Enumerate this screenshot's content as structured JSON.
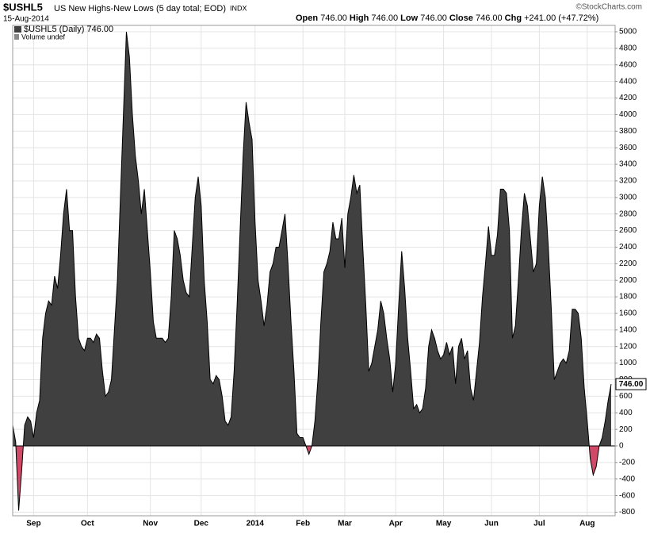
{
  "header": {
    "symbol": "$USHL5",
    "description": "US New Highs-New Lows (5 day total; EOD)",
    "exchange": "INDX",
    "date": "15-Aug-2014",
    "credit": "©StockCharts.com",
    "quote": [
      {
        "label": "Open",
        "value": "746.00"
      },
      {
        "label": "High",
        "value": "746.00"
      },
      {
        "label": "Low",
        "value": "746.00"
      },
      {
        "label": "Close",
        "value": "746.00"
      },
      {
        "label": "Chg",
        "value": "+241.00 (+47.72%)"
      }
    ]
  },
  "chart_data": {
    "type": "area",
    "volume_note": "Volume undef",
    "grid": true,
    "ylim": [
      -843,
      5077
    ],
    "yticks": [
      -800,
      -600,
      -400,
      -200,
      0,
      200,
      400,
      600,
      800,
      1000,
      1200,
      1400,
      1600,
      1800,
      2000,
      2200,
      2400,
      2600,
      2800,
      3000,
      3200,
      3400,
      3600,
      3800,
      4000,
      4200,
      4400,
      4600,
      4800,
      5000
    ],
    "categories": [
      null,
      null,
      null,
      null,
      null,
      null,
      null,
      "Sep",
      null,
      null,
      null,
      null,
      null,
      null,
      null,
      null,
      null,
      null,
      null,
      null,
      null,
      null,
      null,
      null,
      null,
      "Oct",
      null,
      null,
      null,
      null,
      null,
      null,
      null,
      null,
      null,
      null,
      null,
      null,
      null,
      null,
      null,
      null,
      null,
      null,
      null,
      null,
      "Nov",
      null,
      null,
      null,
      null,
      null,
      null,
      null,
      null,
      null,
      null,
      null,
      null,
      null,
      null,
      null,
      null,
      "Dec",
      null,
      null,
      null,
      null,
      null,
      null,
      null,
      null,
      null,
      null,
      null,
      null,
      null,
      null,
      null,
      null,
      null,
      "2014",
      null,
      null,
      null,
      null,
      null,
      null,
      null,
      null,
      null,
      null,
      null,
      null,
      null,
      null,
      null,
      "Feb",
      null,
      null,
      null,
      null,
      null,
      null,
      null,
      null,
      null,
      null,
      null,
      null,
      null,
      "Mar",
      null,
      null,
      null,
      null,
      null,
      null,
      null,
      null,
      null,
      null,
      null,
      null,
      null,
      null,
      null,
      null,
      "Apr",
      null,
      null,
      null,
      null,
      null,
      null,
      null,
      null,
      null,
      null,
      null,
      null,
      null,
      null,
      null,
      "May",
      null,
      null,
      null,
      null,
      null,
      null,
      null,
      null,
      null,
      null,
      null,
      null,
      null,
      null,
      null,
      "Jun",
      null,
      null,
      null,
      null,
      null,
      null,
      null,
      null,
      null,
      null,
      null,
      null,
      null,
      null,
      null,
      "Jul",
      null,
      null,
      null,
      null,
      null,
      null,
      null,
      null,
      null,
      null,
      null,
      null,
      null,
      null,
      null,
      "Aug",
      null,
      null,
      null,
      null,
      null,
      null,
      null,
      null
    ],
    "series": [
      {
        "name": "$USHL5 (Daily) 746.00",
        "color": "#404040",
        "negative_color": "#d04a68",
        "values": [
          250,
          50,
          -780,
          -300,
          250,
          350,
          300,
          100,
          400,
          550,
          1300,
          1600,
          1750,
          1700,
          2050,
          1900,
          2300,
          2800,
          3100,
          2600,
          2600,
          1800,
          1300,
          1200,
          1150,
          1300,
          1300,
          1250,
          1350,
          1300,
          900,
          600,
          650,
          800,
          1400,
          2000,
          3000,
          4000,
          5000,
          4700,
          4000,
          3500,
          3200,
          2800,
          3100,
          2600,
          2100,
          1500,
          1300,
          1300,
          1300,
          1250,
          1300,
          1800,
          2600,
          2500,
          2300,
          2000,
          1850,
          1800,
          2400,
          3000,
          3250,
          2900,
          2000,
          1500,
          800,
          750,
          850,
          800,
          600,
          300,
          250,
          350,
          900,
          1700,
          2600,
          3500,
          4150,
          3900,
          3700,
          2700,
          2000,
          1750,
          1450,
          1700,
          2100,
          2200,
          2400,
          2400,
          2600,
          2800,
          2200,
          1500,
          900,
          150,
          100,
          100,
          0,
          -100,
          0,
          300,
          800,
          1500,
          2100,
          2200,
          2350,
          2700,
          2500,
          2500,
          2750,
          2150,
          2800,
          3000,
          3270,
          3050,
          3150,
          2400,
          1700,
          900,
          1000,
          1200,
          1400,
          1750,
          1600,
          1300,
          1050,
          650,
          1000,
          1700,
          2350,
          1900,
          1300,
          900,
          450,
          500,
          400,
          450,
          700,
          1200,
          1400,
          1300,
          1150,
          1050,
          1100,
          1250,
          1100,
          1200,
          750,
          1200,
          1300,
          1050,
          1150,
          700,
          550,
          900,
          1250,
          1800,
          2200,
          2650,
          2300,
          2300,
          2550,
          3100,
          3100,
          3050,
          2600,
          1300,
          1450,
          2000,
          2600,
          3050,
          2900,
          2500,
          2100,
          2200,
          2900,
          3250,
          3000,
          2400,
          1650,
          800,
          900,
          1000,
          1050,
          1000,
          1150,
          1650,
          1650,
          1600,
          1300,
          700,
          300,
          -150,
          -350,
          -250,
          0,
          100,
          300,
          550,
          746
        ],
        "value_labels": [
          null,
          null,
          null,
          null,
          null,
          null,
          null,
          null,
          null,
          null,
          null,
          null,
          null,
          null,
          null,
          null,
          null,
          null,
          null,
          null,
          null,
          null,
          null,
          null,
          null,
          null,
          null,
          null,
          null,
          null,
          null,
          null,
          null,
          null,
          null,
          null,
          null,
          null,
          null,
          null,
          null,
          null,
          null,
          null,
          null,
          null,
          null,
          null,
          null,
          null,
          null,
          null,
          null,
          null,
          null,
          null,
          null,
          null,
          null,
          null,
          null,
          null,
          null,
          null,
          null,
          null,
          null,
          null,
          null,
          null,
          null,
          null,
          null,
          null,
          null,
          null,
          null,
          null,
          null,
          null,
          null,
          null,
          null,
          null,
          null,
          null,
          null,
          null,
          null,
          null,
          null,
          null,
          null,
          null,
          null,
          null,
          null,
          null,
          null,
          null,
          null,
          null,
          null,
          null,
          null,
          null,
          null,
          null,
          null,
          null,
          null,
          null,
          null,
          null,
          null,
          null,
          null,
          null,
          null,
          null,
          null,
          null,
          null,
          null,
          null,
          null,
          null,
          null,
          null,
          null,
          null,
          null,
          null,
          null,
          null,
          null,
          null,
          null,
          null,
          null,
          null,
          null,
          null,
          null,
          null,
          null,
          null,
          null,
          null,
          null,
          null,
          null,
          null,
          null,
          null,
          null,
          null,
          null,
          null,
          null,
          null,
          null,
          null,
          null,
          null,
          null,
          null,
          null,
          null,
          null,
          null,
          null,
          null,
          null,
          null,
          null,
          null,
          null,
          null,
          null,
          null,
          null,
          null,
          null,
          null,
          null,
          null,
          null,
          null,
          null,
          null,
          null,
          null,
          null,
          null,
          null,
          null,
          null,
          null,
          null,
          "746.00"
        ]
      }
    ]
  }
}
